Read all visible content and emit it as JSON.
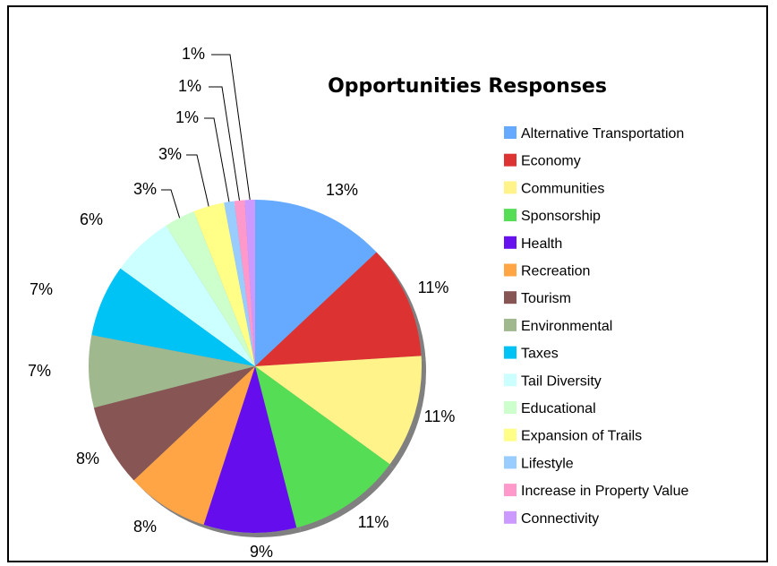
{
  "chart_data": {
    "type": "pie",
    "title": "Opportunities Responses",
    "legend_position": "right",
    "slices": [
      {
        "label": "Alternative Transportation",
        "value": 13,
        "display": "13%",
        "color": "#66aaff"
      },
      {
        "label": "Economy",
        "value": 11,
        "display": "11%",
        "color": "#dd3333"
      },
      {
        "label": "Communities",
        "value": 11,
        "display": "11%",
        "color": "#fff38a"
      },
      {
        "label": "Sponsorship",
        "value": 11,
        "display": "11%",
        "color": "#55dd55"
      },
      {
        "label": "Health",
        "value": 9,
        "display": "9%",
        "color": "#6611ee"
      },
      {
        "label": "Recreation",
        "value": 8,
        "display": "8%",
        "color": "#ffa544"
      },
      {
        "label": "Tourism",
        "value": 8,
        "display": "8%",
        "color": "#885555"
      },
      {
        "label": "Environmental",
        "value": 7,
        "display": "7%",
        "color": "#a0b88e"
      },
      {
        "label": "Taxes",
        "value": 7,
        "display": "7%",
        "color": "#00c3f5"
      },
      {
        "label": "Tail Diversity",
        "value": 6,
        "display": "6%",
        "color": "#ccffff"
      },
      {
        "label": "Educational",
        "value": 3,
        "display": "3%",
        "color": "#ccffcc"
      },
      {
        "label": "Expansion of Trails",
        "value": 3,
        "display": "3%",
        "color": "#ffff88"
      },
      {
        "label": "Lifestyle",
        "value": 1,
        "display": "1%",
        "color": "#99ccff"
      },
      {
        "label": "Increase in Property Value",
        "value": 1,
        "display": "1%",
        "color": "#ff99cc"
      },
      {
        "label": "Connectivity",
        "value": 1,
        "display": "1%",
        "color": "#cc99ff"
      }
    ]
  }
}
